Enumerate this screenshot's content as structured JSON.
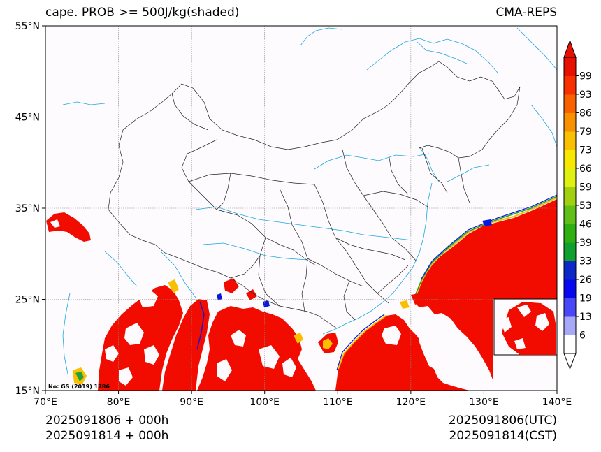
{
  "title": {
    "left": "cape. PROB >= 500J/kg(shaded)",
    "right": "CMA-REPS"
  },
  "map": {
    "lon_range": [
      70,
      140
    ],
    "lat_range": [
      15,
      55
    ],
    "lon_ticks": [
      {
        "value": 70,
        "label": "70°E"
      },
      {
        "value": 80,
        "label": "80°E"
      },
      {
        "value": 90,
        "label": "90°E"
      },
      {
        "value": 100,
        "label": "100°E"
      },
      {
        "value": 110,
        "label": "110°E"
      },
      {
        "value": 120,
        "label": "120°E"
      },
      {
        "value": 130,
        "label": "130°E"
      },
      {
        "value": 140,
        "label": "140°E"
      }
    ],
    "lat_ticks": [
      {
        "value": 15,
        "label": "15°N"
      },
      {
        "value": 25,
        "label": "25°N"
      },
      {
        "value": 35,
        "label": "35°N"
      },
      {
        "value": 45,
        "label": "45°N"
      },
      {
        "value": 55,
        "label": "55°N"
      }
    ],
    "grid_lines": true,
    "map_credit": "No: GS (2019) 1786",
    "colors": {
      "land": "#fdfbfd",
      "border": "#000000",
      "river": "#1aa7e0",
      "grid": "#888888",
      "shade_high": "#f20c00"
    }
  },
  "colorbar": {
    "labels": [
      "6",
      "13",
      "19",
      "26",
      "33",
      "39",
      "46",
      "53",
      "59",
      "66",
      "73",
      "79",
      "86",
      "93",
      "99"
    ],
    "colors": [
      "#ffffff",
      "#a8a8f8",
      "#4848f8",
      "#0808f0",
      "#0c28c8",
      "#10a030",
      "#30b010",
      "#60c018",
      "#a0d010",
      "#e0f010",
      "#f8e800",
      "#f8c000",
      "#f89000",
      "#f86000",
      "#f83000",
      "#e81000"
    ]
  },
  "time": {
    "left_line1": "2025091806  +  000h",
    "left_line2": "2025091814  +  000h",
    "right_line1": "2025091806(UTC)",
    "right_line2": "2025091814(CST)"
  }
}
